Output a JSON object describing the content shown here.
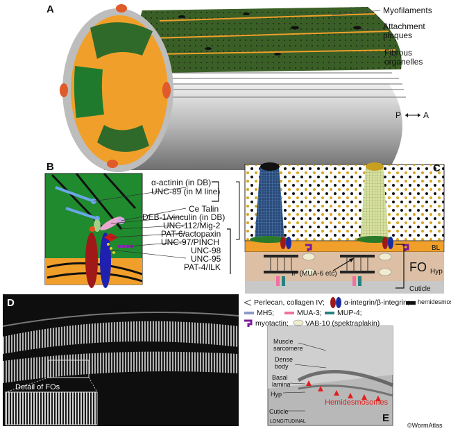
{
  "panels": {
    "a": "A",
    "b": "B",
    "c": "C",
    "d": "D",
    "e": "E"
  },
  "panel_a": {
    "myofilaments": "Myofilaments",
    "attachment_plaques": "Attachment\nplaques",
    "fibrous_organelles": "Fibrous\norganelles",
    "orientation_p": "P",
    "orientation_a": "A"
  },
  "panel_b": {
    "labels": [
      "α-actinin (in DB)",
      "UNC-89 (in M line)",
      "Ce Talin",
      "DEB-1/vinculin (in DB)",
      "UNC-112/Mig-2",
      "PAT-6/actopaxin",
      "UNC-97/PINCH",
      "UNC-98",
      "UNC-95",
      "PAT-4/ILK"
    ]
  },
  "panel_c": {
    "bl": "BL",
    "fo": "FO",
    "hyp": "Hyp",
    "if": "IF (MUA-6 etc)",
    "cuticle": "Cuticle"
  },
  "legend": {
    "row1": [
      "Perlecan, collagen IV;",
      "α-integrin/β-integrin;",
      "hemidesmosome;"
    ],
    "row2": [
      "MH5;",
      "MUA-3;",
      "MUP-4;"
    ],
    "row3": [
      "myotactin;",
      "VAB-10 (spektraplakin)"
    ]
  },
  "panel_d": {
    "detail": "Detail of FOs"
  },
  "panel_e": {
    "muscle": "Muscle\nsarcomere",
    "dense": "Dense\nbody",
    "basal": "Basal\nlamina",
    "hyp": "Hyp",
    "cuticle": "Cuticle",
    "hemidesmosomes": "Hemidesmosomes",
    "longitudinal": "LONGITUDINAL"
  },
  "credit": "©WormAtlas",
  "colors": {
    "muscle_green": "#1f7a2e",
    "muscle_dark": "#2f5e2a",
    "orange": "#f0a02a",
    "hyp": "#dcbfa4",
    "cuticle": "#c8c8c8",
    "integrin_red": "#b01818",
    "integrin_blue": "#1a2aa0",
    "myotactin": "#7a1a9a"
  }
}
